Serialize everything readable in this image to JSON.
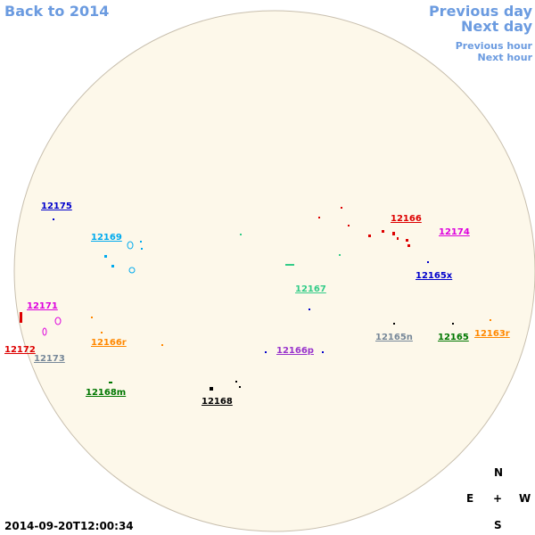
{
  "nav": {
    "back": "Back to 2014",
    "previous_day": "Previous day",
    "next_day": "Next day",
    "previous_hour": "Previous hour",
    "next_hour": "Next hour"
  },
  "regions": [
    "12175",
    "12169",
    "12171",
    "12172",
    "12173",
    "12166r",
    "12168m",
    "12168",
    "12167",
    "12166p",
    "12166",
    "12174",
    "12165x",
    "12165n",
    "12165",
    "12163r"
  ],
  "compass": {
    "north": "N",
    "east": "E",
    "center": "+",
    "west": "W",
    "south": "S"
  },
  "timestamp": "2014-09-20T12:00:34"
}
